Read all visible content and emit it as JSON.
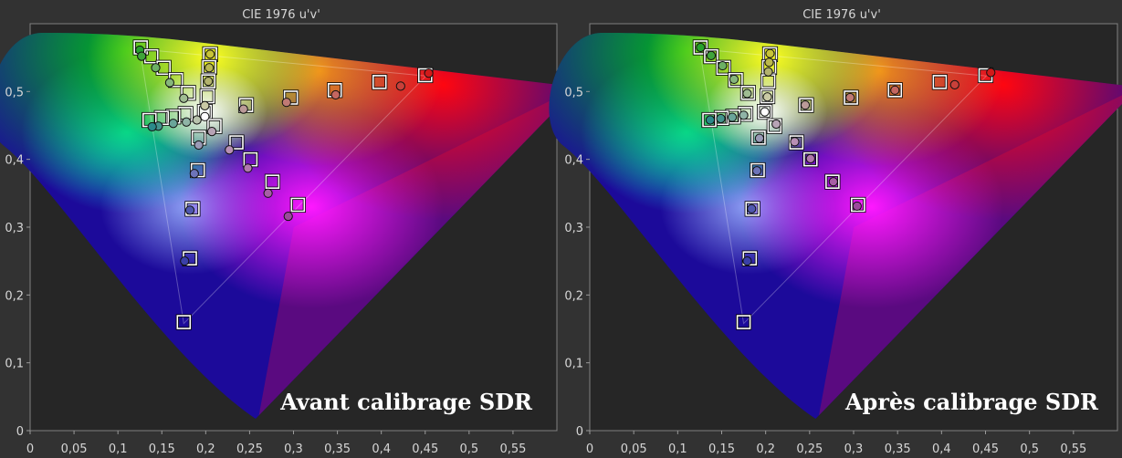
{
  "chart_data": [
    {
      "type": "scatter",
      "title": "CIE 1976 u'v'",
      "caption": "Avant calibrage SDR",
      "xlim": [
        0,
        0.6
      ],
      "ylim": [
        0,
        0.6
      ],
      "x_ticks": [
        "0",
        "0,05",
        "0,1",
        "0,15",
        "0,2",
        "0,25",
        "0,3",
        "0,35",
        "0,4",
        "0,45",
        "0,5",
        "0,55"
      ],
      "y_ticks": [
        "0",
        "0,1",
        "0,2",
        "0,3",
        "0,4",
        "0,5"
      ],
      "series": [
        {
          "role": "targets",
          "points": [
            [
              0.126,
              0.565
            ],
            [
              0.138,
              0.552
            ],
            [
              0.152,
              0.535
            ],
            [
              0.166,
              0.517
            ],
            [
              0.18,
              0.498
            ],
            [
              0.199,
              0.47
            ],
            [
              0.177,
              0.467
            ],
            [
              0.163,
              0.463
            ],
            [
              0.15,
              0.461
            ],
            [
              0.136,
              0.458
            ],
            [
              0.192,
              0.432
            ],
            [
              0.191,
              0.384
            ],
            [
              0.185,
              0.327
            ],
            [
              0.182,
              0.254
            ],
            [
              0.175,
              0.16
            ],
            [
              0.21,
              0.449
            ],
            [
              0.235,
              0.425
            ],
            [
              0.251,
              0.4
            ],
            [
              0.276,
              0.367
            ],
            [
              0.305,
              0.333
            ],
            [
              0.246,
              0.48
            ],
            [
              0.297,
              0.491
            ],
            [
              0.347,
              0.502
            ],
            [
              0.398,
              0.514
            ],
            [
              0.45,
              0.524
            ],
            [
              0.205,
              0.555
            ],
            [
              0.204,
              0.536
            ],
            [
              0.203,
              0.515
            ],
            [
              0.202,
              0.493
            ]
          ]
        },
        {
          "role": "measured",
          "points": [
            [
              0.125,
              0.561,
              "#27a22c"
            ],
            [
              0.127,
              0.552,
              "#3fa43a"
            ],
            [
              0.143,
              0.535,
              "#6cb064"
            ],
            [
              0.159,
              0.513,
              "#86b67c"
            ],
            [
              0.175,
              0.49,
              "#9fbc92"
            ],
            [
              0.19,
              0.458,
              "#b8c3ad"
            ],
            [
              0.178,
              0.455,
              "#8fb4a6"
            ],
            [
              0.163,
              0.453,
              "#6aa59a"
            ],
            [
              0.146,
              0.449,
              "#43948c"
            ],
            [
              0.139,
              0.448,
              "#2b8a8a"
            ],
            [
              0.192,
              0.421,
              "#9a9ab6"
            ],
            [
              0.187,
              0.379,
              "#6d74b8"
            ],
            [
              0.182,
              0.325,
              "#5058b0"
            ],
            [
              0.176,
              0.25,
              "#3a40a8"
            ],
            [
              0.207,
              0.441,
              "#b7a3b5"
            ],
            [
              0.227,
              0.414,
              "#b88fb5"
            ],
            [
              0.248,
              0.387,
              "#b178ad"
            ],
            [
              0.271,
              0.35,
              "#a75ea5"
            ],
            [
              0.294,
              0.316,
              "#9c4a9c"
            ],
            [
              0.243,
              0.474,
              "#bb9a98"
            ],
            [
              0.292,
              0.484,
              "#c07a74"
            ],
            [
              0.348,
              0.495,
              "#c56660"
            ],
            [
              0.422,
              0.508,
              "#c8403a"
            ],
            [
              0.454,
              0.527,
              "#d11a1a"
            ],
            [
              0.205,
              0.555,
              "#c8c437"
            ],
            [
              0.204,
              0.535,
              "#b9b852"
            ],
            [
              0.203,
              0.515,
              "#b3b36d"
            ],
            [
              0.199,
              0.479,
              "#c9c9a4"
            ],
            [
              0.199,
              0.463,
              "#ffffff"
            ]
          ]
        }
      ]
    },
    {
      "type": "scatter",
      "title": "CIE 1976 u'v'",
      "caption": "Après calibrage SDR",
      "xlim": [
        0,
        0.6
      ],
      "ylim": [
        0,
        0.6
      ],
      "x_ticks": [
        "0",
        "0,05",
        "0,1",
        "0,15",
        "0,2",
        "0,25",
        "0,3",
        "0,35",
        "0,4",
        "0,45",
        "0,5",
        "0,55"
      ],
      "y_ticks": [
        "0",
        "0,1",
        "0,2",
        "0,3",
        "0,4",
        "0,5"
      ],
      "series": [
        {
          "role": "targets",
          "points": [
            [
              0.126,
              0.565
            ],
            [
              0.138,
              0.552
            ],
            [
              0.152,
              0.535
            ],
            [
              0.166,
              0.517
            ],
            [
              0.18,
              0.498
            ],
            [
              0.199,
              0.47
            ],
            [
              0.177,
              0.467
            ],
            [
              0.163,
              0.463
            ],
            [
              0.15,
              0.461
            ],
            [
              0.136,
              0.458
            ],
            [
              0.192,
              0.432
            ],
            [
              0.191,
              0.384
            ],
            [
              0.185,
              0.327
            ],
            [
              0.182,
              0.254
            ],
            [
              0.175,
              0.16
            ],
            [
              0.21,
              0.449
            ],
            [
              0.235,
              0.425
            ],
            [
              0.251,
              0.4
            ],
            [
              0.276,
              0.367
            ],
            [
              0.305,
              0.333
            ],
            [
              0.246,
              0.48
            ],
            [
              0.297,
              0.491
            ],
            [
              0.347,
              0.502
            ],
            [
              0.398,
              0.514
            ],
            [
              0.45,
              0.524
            ],
            [
              0.205,
              0.555
            ],
            [
              0.204,
              0.536
            ],
            [
              0.203,
              0.515
            ],
            [
              0.202,
              0.493
            ]
          ]
        },
        {
          "role": "measured",
          "points": [
            [
              0.126,
              0.565,
              "#27a22c"
            ],
            [
              0.138,
              0.553,
              "#3fa43a"
            ],
            [
              0.151,
              0.538,
              "#6cb064"
            ],
            [
              0.164,
              0.518,
              "#86b67c"
            ],
            [
              0.179,
              0.497,
              "#9fbc92"
            ],
            [
              0.199,
              0.47,
              "#ffffff"
            ],
            [
              0.175,
              0.465,
              "#8fb4a6"
            ],
            [
              0.162,
              0.462,
              "#6aa59a"
            ],
            [
              0.149,
              0.46,
              "#43948c"
            ],
            [
              0.137,
              0.458,
              "#2b8a8a"
            ],
            [
              0.193,
              0.431,
              "#9a9ab6"
            ],
            [
              0.19,
              0.383,
              "#6d74b8"
            ],
            [
              0.184,
              0.327,
              "#5058b0"
            ],
            [
              0.179,
              0.25,
              "#3a40a8"
            ],
            [
              0.212,
              0.452,
              "#b7a3b5"
            ],
            [
              0.233,
              0.426,
              "#b88fb5"
            ],
            [
              0.251,
              0.401,
              "#b178ad"
            ],
            [
              0.277,
              0.367,
              "#a75ea5"
            ],
            [
              0.304,
              0.331,
              "#9c4a9c"
            ],
            [
              0.245,
              0.48,
              "#bb9a98"
            ],
            [
              0.296,
              0.491,
              "#c07a74"
            ],
            [
              0.347,
              0.502,
              "#c56660"
            ],
            [
              0.415,
              0.51,
              "#c8403a"
            ],
            [
              0.456,
              0.528,
              "#d11a1a"
            ],
            [
              0.205,
              0.556,
              "#c8c437"
            ],
            [
              0.204,
              0.543,
              "#bcb94c"
            ],
            [
              0.203,
              0.529,
              "#b3b36d"
            ],
            [
              0.202,
              0.492,
              "#c9c9a4"
            ]
          ]
        }
      ]
    }
  ]
}
